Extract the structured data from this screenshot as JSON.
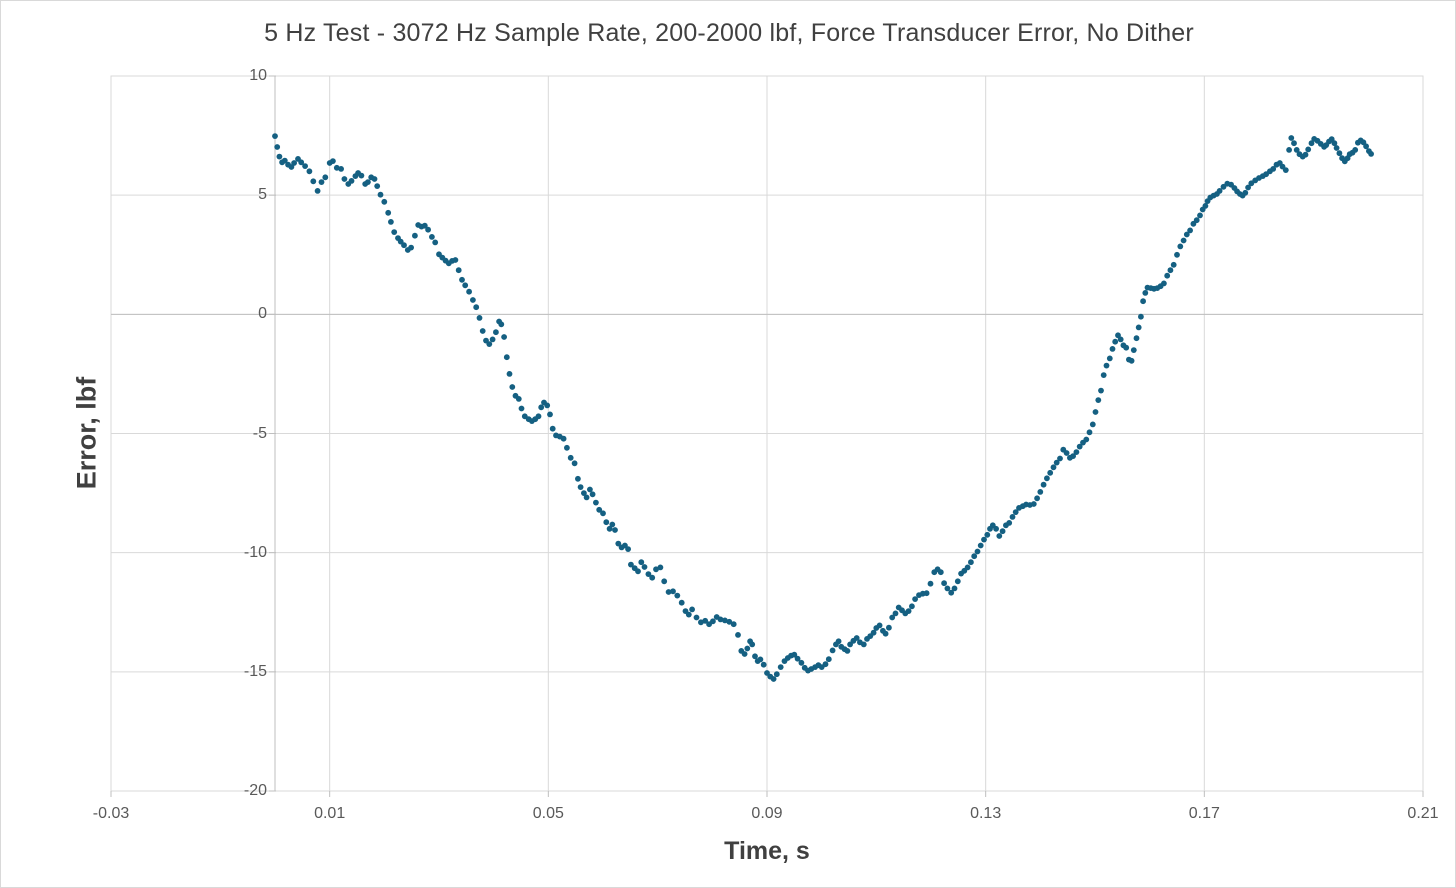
{
  "chart_data": {
    "type": "scatter",
    "title": "5 Hz Test - 3072 Hz Sample Rate, 200-2000 lbf, Force Transducer Error, No Dither",
    "xlabel": "Time, s",
    "ylabel": "Error, lbf",
    "xlim": [
      -0.03,
      0.21
    ],
    "ylim": [
      -20,
      10
    ],
    "x_tick_values": [
      -0.03,
      0.01,
      0.05,
      0.09,
      0.13,
      0.17,
      0.21
    ],
    "x_tick_labels": [
      "-0.03",
      "0.01",
      "0.05",
      "0.09",
      "0.13",
      "0.17",
      "0.21"
    ],
    "y_tick_values": [
      10,
      5,
      0,
      -5,
      -10,
      -15,
      -20
    ],
    "y_tick_labels": [
      "10",
      "5",
      "0",
      "-5",
      "-10",
      "-15",
      "-20"
    ],
    "grid": true,
    "legend": false,
    "colors": {
      "point": "#156082",
      "gridline": "#d9d9d9",
      "axis_line": "#bfbfbf",
      "tick_label": "#595959",
      "title_text": "#404040"
    },
    "point_radius_px": 2.9,
    "points": [
      [
        0.0,
        7.48
      ],
      [
        0.0004,
        7.02
      ],
      [
        0.0008,
        6.62
      ],
      [
        0.0013,
        6.38
      ],
      [
        0.0018,
        6.45
      ],
      [
        0.0024,
        6.28
      ],
      [
        0.003,
        6.18
      ],
      [
        0.0035,
        6.35
      ],
      [
        0.0042,
        6.52
      ],
      [
        0.0048,
        6.38
      ],
      [
        0.0055,
        6.22
      ],
      [
        0.0063,
        6.0
      ],
      [
        0.007,
        5.58
      ],
      [
        0.0078,
        5.18
      ],
      [
        0.0085,
        5.55
      ],
      [
        0.0092,
        5.75
      ],
      [
        0.01,
        6.35
      ],
      [
        0.0106,
        6.43
      ],
      [
        0.0113,
        6.15
      ],
      [
        0.0121,
        6.1
      ],
      [
        0.0127,
        5.68
      ],
      [
        0.0134,
        5.47
      ],
      [
        0.014,
        5.6
      ],
      [
        0.0147,
        5.8
      ],
      [
        0.0152,
        5.93
      ],
      [
        0.0158,
        5.82
      ],
      [
        0.0165,
        5.47
      ],
      [
        0.017,
        5.55
      ],
      [
        0.0176,
        5.75
      ],
      [
        0.0182,
        5.68
      ],
      [
        0.0187,
        5.38
      ],
      [
        0.0193,
        5.02
      ],
      [
        0.02,
        4.72
      ],
      [
        0.0207,
        4.26
      ],
      [
        0.0212,
        3.88
      ],
      [
        0.0218,
        3.45
      ],
      [
        0.0225,
        3.2
      ],
      [
        0.023,
        3.05
      ],
      [
        0.0236,
        2.9
      ],
      [
        0.0243,
        2.7
      ],
      [
        0.0249,
        2.8
      ],
      [
        0.0256,
        3.3
      ],
      [
        0.0262,
        3.75
      ],
      [
        0.0268,
        3.68
      ],
      [
        0.0274,
        3.72
      ],
      [
        0.028,
        3.55
      ],
      [
        0.0287,
        3.25
      ],
      [
        0.0293,
        3.02
      ],
      [
        0.03,
        2.52
      ],
      [
        0.0306,
        2.38
      ],
      [
        0.0312,
        2.25
      ],
      [
        0.0318,
        2.14
      ],
      [
        0.0324,
        2.24
      ],
      [
        0.033,
        2.28
      ],
      [
        0.0336,
        1.85
      ],
      [
        0.0342,
        1.45
      ],
      [
        0.0348,
        1.22
      ],
      [
        0.0355,
        0.95
      ],
      [
        0.0362,
        0.6
      ],
      [
        0.0368,
        0.3
      ],
      [
        0.0374,
        -0.15
      ],
      [
        0.038,
        -0.7
      ],
      [
        0.0386,
        -1.1
      ],
      [
        0.0392,
        -1.25
      ],
      [
        0.0398,
        -1.05
      ],
      [
        0.0404,
        -0.75
      ],
      [
        0.041,
        -0.3
      ],
      [
        0.0414,
        -0.42
      ],
      [
        0.0419,
        -0.95
      ],
      [
        0.0424,
        -1.8
      ],
      [
        0.0429,
        -2.5
      ],
      [
        0.0434,
        -3.05
      ],
      [
        0.044,
        -3.42
      ],
      [
        0.0446,
        -3.55
      ],
      [
        0.0451,
        -3.95
      ],
      [
        0.0457,
        -4.28
      ],
      [
        0.0464,
        -4.4
      ],
      [
        0.047,
        -4.48
      ],
      [
        0.0476,
        -4.4
      ],
      [
        0.0482,
        -4.28
      ],
      [
        0.0487,
        -3.9
      ],
      [
        0.0492,
        -3.7
      ],
      [
        0.0498,
        -3.82
      ],
      [
        0.0503,
        -4.2
      ],
      [
        0.0508,
        -4.8
      ],
      [
        0.0514,
        -5.08
      ],
      [
        0.0521,
        -5.13
      ],
      [
        0.0528,
        -5.22
      ],
      [
        0.0534,
        -5.6
      ],
      [
        0.0541,
        -6.02
      ],
      [
        0.0548,
        -6.25
      ],
      [
        0.0554,
        -6.9
      ],
      [
        0.0559,
        -7.25
      ],
      [
        0.0565,
        -7.5
      ],
      [
        0.057,
        -7.68
      ],
      [
        0.0576,
        -7.35
      ],
      [
        0.0581,
        -7.55
      ],
      [
        0.0587,
        -7.9
      ],
      [
        0.0593,
        -8.2
      ],
      [
        0.06,
        -8.35
      ],
      [
        0.0606,
        -8.72
      ],
      [
        0.0612,
        -9.0
      ],
      [
        0.0617,
        -8.82
      ],
      [
        0.0622,
        -9.05
      ],
      [
        0.0628,
        -9.62
      ],
      [
        0.0634,
        -9.78
      ],
      [
        0.064,
        -9.7
      ],
      [
        0.0646,
        -9.85
      ],
      [
        0.0651,
        -10.5
      ],
      [
        0.0658,
        -10.65
      ],
      [
        0.0664,
        -10.78
      ],
      [
        0.067,
        -10.4
      ],
      [
        0.0676,
        -10.6
      ],
      [
        0.0683,
        -10.9
      ],
      [
        0.069,
        -11.05
      ],
      [
        0.0697,
        -10.7
      ],
      [
        0.0705,
        -10.62
      ],
      [
        0.0712,
        -11.2
      ],
      [
        0.072,
        -11.65
      ],
      [
        0.0728,
        -11.62
      ],
      [
        0.0736,
        -11.8
      ],
      [
        0.0744,
        -12.1
      ],
      [
        0.0751,
        -12.45
      ],
      [
        0.0757,
        -12.6
      ],
      [
        0.0763,
        -12.38
      ],
      [
        0.0771,
        -12.72
      ],
      [
        0.0779,
        -12.92
      ],
      [
        0.0787,
        -12.86
      ],
      [
        0.0794,
        -13.0
      ],
      [
        0.0801,
        -12.88
      ],
      [
        0.0808,
        -12.7
      ],
      [
        0.0815,
        -12.8
      ],
      [
        0.0823,
        -12.84
      ],
      [
        0.0831,
        -12.9
      ],
      [
        0.0839,
        -13.0
      ],
      [
        0.0847,
        -13.45
      ],
      [
        0.0853,
        -14.12
      ],
      [
        0.0859,
        -14.25
      ],
      [
        0.0864,
        -14.02
      ],
      [
        0.0869,
        -13.72
      ],
      [
        0.0873,
        -13.85
      ],
      [
        0.0878,
        -14.35
      ],
      [
        0.0883,
        -14.55
      ],
      [
        0.0888,
        -14.48
      ],
      [
        0.0894,
        -14.7
      ],
      [
        0.09,
        -15.05
      ],
      [
        0.0906,
        -15.2
      ],
      [
        0.0912,
        -15.3
      ],
      [
        0.0918,
        -15.1
      ],
      [
        0.0925,
        -14.8
      ],
      [
        0.0932,
        -14.55
      ],
      [
        0.0938,
        -14.42
      ],
      [
        0.0944,
        -14.32
      ],
      [
        0.095,
        -14.28
      ],
      [
        0.0956,
        -14.45
      ],
      [
        0.0963,
        -14.62
      ],
      [
        0.0969,
        -14.83
      ],
      [
        0.0975,
        -14.95
      ],
      [
        0.0981,
        -14.88
      ],
      [
        0.0988,
        -14.8
      ],
      [
        0.0994,
        -14.72
      ],
      [
        0.1,
        -14.8
      ],
      [
        0.1007,
        -14.68
      ],
      [
        0.1013,
        -14.47
      ],
      [
        0.102,
        -14.1
      ],
      [
        0.1026,
        -13.85
      ],
      [
        0.1031,
        -13.72
      ],
      [
        0.1036,
        -13.95
      ],
      [
        0.1042,
        -14.05
      ],
      [
        0.1047,
        -14.12
      ],
      [
        0.1052,
        -13.85
      ],
      [
        0.1058,
        -13.7
      ],
      [
        0.1064,
        -13.58
      ],
      [
        0.107,
        -13.76
      ],
      [
        0.1077,
        -13.85
      ],
      [
        0.1083,
        -13.62
      ],
      [
        0.1089,
        -13.5
      ],
      [
        0.1095,
        -13.36
      ],
      [
        0.11,
        -13.16
      ],
      [
        0.1106,
        -13.05
      ],
      [
        0.1112,
        -13.28
      ],
      [
        0.1117,
        -13.4
      ],
      [
        0.1123,
        -13.15
      ],
      [
        0.1129,
        -12.72
      ],
      [
        0.1135,
        -12.55
      ],
      [
        0.1141,
        -12.3
      ],
      [
        0.1147,
        -12.42
      ],
      [
        0.1153,
        -12.55
      ],
      [
        0.1159,
        -12.45
      ],
      [
        0.1165,
        -12.25
      ],
      [
        0.1171,
        -11.95
      ],
      [
        0.1178,
        -11.78
      ],
      [
        0.1185,
        -11.72
      ],
      [
        0.1192,
        -11.7
      ],
      [
        0.1199,
        -11.3
      ],
      [
        0.1206,
        -10.82
      ],
      [
        0.1212,
        -10.7
      ],
      [
        0.1218,
        -10.82
      ],
      [
        0.1224,
        -11.28
      ],
      [
        0.123,
        -11.5
      ],
      [
        0.1237,
        -11.68
      ],
      [
        0.1243,
        -11.5
      ],
      [
        0.1249,
        -11.2
      ],
      [
        0.1255,
        -10.88
      ],
      [
        0.1261,
        -10.76
      ],
      [
        0.1267,
        -10.62
      ],
      [
        0.1273,
        -10.4
      ],
      [
        0.1279,
        -10.15
      ],
      [
        0.1285,
        -9.95
      ],
      [
        0.1291,
        -9.7
      ],
      [
        0.1297,
        -9.45
      ],
      [
        0.1303,
        -9.25
      ],
      [
        0.1308,
        -9.0
      ],
      [
        0.1313,
        -8.85
      ],
      [
        0.1319,
        -9.0
      ],
      [
        0.1325,
        -9.3
      ],
      [
        0.1331,
        -9.1
      ],
      [
        0.1337,
        -8.85
      ],
      [
        0.1343,
        -8.75
      ],
      [
        0.1349,
        -8.5
      ],
      [
        0.1355,
        -8.3
      ],
      [
        0.1361,
        -8.12
      ],
      [
        0.1368,
        -8.05
      ],
      [
        0.1374,
        -7.98
      ],
      [
        0.1381,
        -8.0
      ],
      [
        0.1388,
        -7.96
      ],
      [
        0.1394,
        -7.72
      ],
      [
        0.14,
        -7.45
      ],
      [
        0.1406,
        -7.15
      ],
      [
        0.1412,
        -6.88
      ],
      [
        0.1418,
        -6.65
      ],
      [
        0.1424,
        -6.42
      ],
      [
        0.143,
        -6.22
      ],
      [
        0.1436,
        -6.05
      ],
      [
        0.1442,
        -5.68
      ],
      [
        0.1448,
        -5.82
      ],
      [
        0.1454,
        -6.02
      ],
      [
        0.146,
        -5.95
      ],
      [
        0.1466,
        -5.78
      ],
      [
        0.1472,
        -5.55
      ],
      [
        0.1478,
        -5.38
      ],
      [
        0.1484,
        -5.25
      ],
      [
        0.149,
        -4.95
      ],
      [
        0.1496,
        -4.62
      ],
      [
        0.1501,
        -4.1
      ],
      [
        0.1506,
        -3.6
      ],
      [
        0.1511,
        -3.2
      ],
      [
        0.1516,
        -2.55
      ],
      [
        0.1521,
        -2.15
      ],
      [
        0.1527,
        -1.85
      ],
      [
        0.1532,
        -1.45
      ],
      [
        0.1537,
        -1.15
      ],
      [
        0.1542,
        -0.88
      ],
      [
        0.1547,
        -1.05
      ],
      [
        0.1552,
        -1.3
      ],
      [
        0.1557,
        -1.4
      ],
      [
        0.1562,
        -1.9
      ],
      [
        0.1567,
        -1.95
      ],
      [
        0.1571,
        -1.5
      ],
      [
        0.1576,
        -1.0
      ],
      [
        0.158,
        -0.55
      ],
      [
        0.1584,
        -0.1
      ],
      [
        0.1588,
        0.55
      ],
      [
        0.1592,
        0.9
      ],
      [
        0.1596,
        1.12
      ],
      [
        0.1602,
        1.1
      ],
      [
        0.1608,
        1.07
      ],
      [
        0.1614,
        1.1
      ],
      [
        0.162,
        1.18
      ],
      [
        0.1626,
        1.3
      ],
      [
        0.1632,
        1.62
      ],
      [
        0.1638,
        1.85
      ],
      [
        0.1644,
        2.08
      ],
      [
        0.165,
        2.5
      ],
      [
        0.1656,
        2.85
      ],
      [
        0.1662,
        3.1
      ],
      [
        0.1668,
        3.35
      ],
      [
        0.1674,
        3.52
      ],
      [
        0.168,
        3.8
      ],
      [
        0.1686,
        3.95
      ],
      [
        0.1692,
        4.15
      ],
      [
        0.1697,
        4.4
      ],
      [
        0.1702,
        4.55
      ],
      [
        0.1706,
        4.75
      ],
      [
        0.1711,
        4.9
      ],
      [
        0.1717,
        4.98
      ],
      [
        0.1723,
        5.05
      ],
      [
        0.1728,
        5.18
      ],
      [
        0.1735,
        5.35
      ],
      [
        0.1742,
        5.48
      ],
      [
        0.1749,
        5.44
      ],
      [
        0.1755,
        5.3
      ],
      [
        0.176,
        5.16
      ],
      [
        0.1765,
        5.05
      ],
      [
        0.177,
        4.98
      ],
      [
        0.1775,
        5.1
      ],
      [
        0.178,
        5.32
      ],
      [
        0.1786,
        5.5
      ],
      [
        0.1793,
        5.62
      ],
      [
        0.18,
        5.72
      ],
      [
        0.1807,
        5.8
      ],
      [
        0.1813,
        5.88
      ],
      [
        0.182,
        6.0
      ],
      [
        0.1826,
        6.1
      ],
      [
        0.1832,
        6.28
      ],
      [
        0.1838,
        6.35
      ],
      [
        0.1843,
        6.2
      ],
      [
        0.1849,
        6.05
      ],
      [
        0.1855,
        6.9
      ],
      [
        0.1859,
        7.4
      ],
      [
        0.1864,
        7.18
      ],
      [
        0.1869,
        6.9
      ],
      [
        0.1874,
        6.72
      ],
      [
        0.188,
        6.62
      ],
      [
        0.1885,
        6.7
      ],
      [
        0.189,
        6.92
      ],
      [
        0.1896,
        7.18
      ],
      [
        0.1901,
        7.36
      ],
      [
        0.1907,
        7.28
      ],
      [
        0.1913,
        7.15
      ],
      [
        0.1919,
        7.03
      ],
      [
        0.1923,
        7.1
      ],
      [
        0.1928,
        7.25
      ],
      [
        0.1933,
        7.35
      ],
      [
        0.1938,
        7.18
      ],
      [
        0.1942,
        6.98
      ],
      [
        0.1947,
        6.76
      ],
      [
        0.1952,
        6.55
      ],
      [
        0.1957,
        6.42
      ],
      [
        0.1962,
        6.55
      ],
      [
        0.1966,
        6.72
      ],
      [
        0.1971,
        6.78
      ],
      [
        0.1976,
        6.9
      ],
      [
        0.1981,
        7.2
      ],
      [
        0.1986,
        7.3
      ],
      [
        0.1991,
        7.22
      ],
      [
        0.1996,
        7.05
      ],
      [
        0.2001,
        6.85
      ],
      [
        0.2005,
        6.73
      ]
    ]
  }
}
